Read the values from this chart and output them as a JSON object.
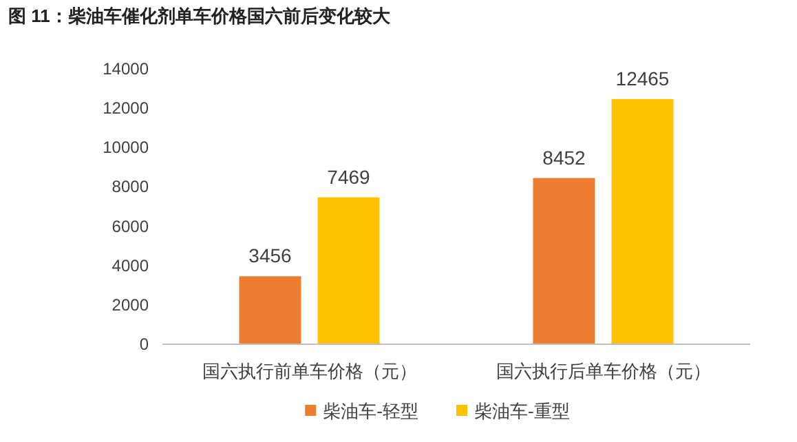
{
  "chart_data": {
    "type": "bar",
    "title": "图 11：柴油车催化剂单车价格国六前后变化较大",
    "categories": [
      "国六执行前单车价格（元）",
      "国六执行后单车价格（元）"
    ],
    "series": [
      {
        "name": "柴油车-轻型",
        "color": "#ed7d31",
        "values": [
          3456,
          8452
        ]
      },
      {
        "name": "柴油车-重型",
        "color": "#ffc000",
        "values": [
          7469,
          12465
        ]
      }
    ],
    "ylim": [
      0,
      14000
    ],
    "yticks": [
      0,
      2000,
      4000,
      6000,
      8000,
      10000,
      12000,
      14000
    ],
    "data_labels": true,
    "grid": false,
    "legend": "bottom"
  }
}
